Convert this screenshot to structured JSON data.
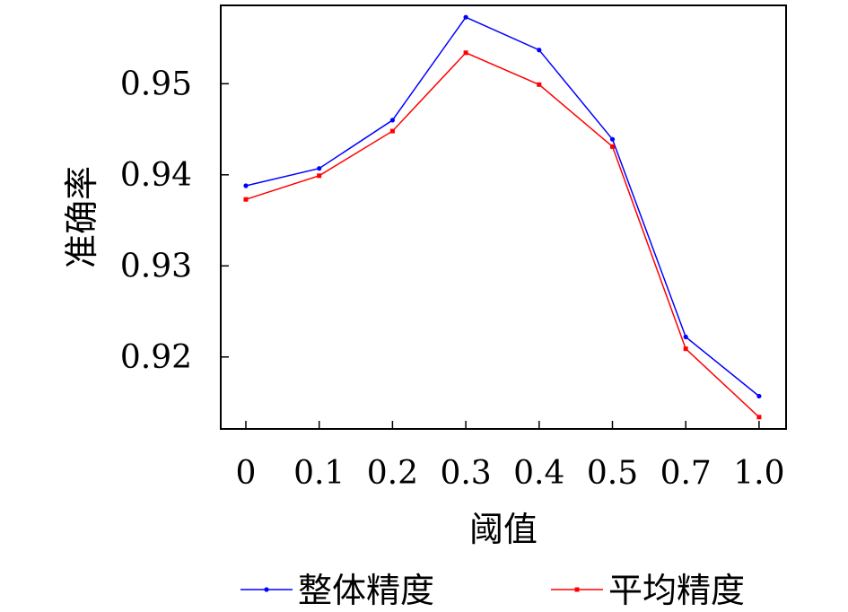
{
  "chart_data": {
    "type": "line",
    "xlabel": "阈值",
    "ylabel": "准确率",
    "categories": [
      "0",
      "0.1",
      "0.2",
      "0.3",
      "0.4",
      "0.5",
      "0.7",
      "1.0"
    ],
    "y_ticks": [
      "0.92",
      "0.93",
      "0.94",
      "0.95"
    ],
    "ylim": [
      0.9121,
      0.9586
    ],
    "grid": false,
    "legend_position": "bottom",
    "series": [
      {
        "name": "整体精度",
        "color": "#0000ff",
        "marker": "circle",
        "values": [
          0.9388,
          0.9407,
          0.946,
          0.9573,
          0.9537,
          0.9439,
          0.9222,
          0.9157
        ]
      },
      {
        "name": "平均精度",
        "color": "#ff0000",
        "marker": "square",
        "values": [
          0.9373,
          0.9399,
          0.9448,
          0.9534,
          0.9499,
          0.9431,
          0.9209,
          0.9134
        ]
      }
    ]
  }
}
